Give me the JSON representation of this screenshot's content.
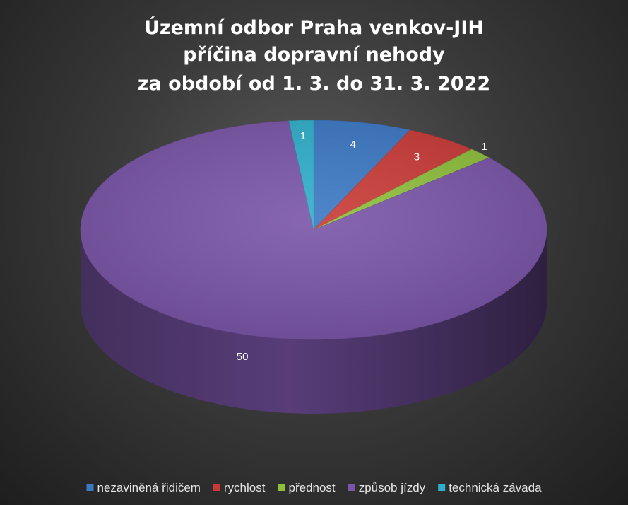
{
  "chart_data": {
    "type": "pie",
    "title_lines": [
      "Územní odbor Praha venkov-JIH",
      "příčina dopravní nehody",
      "za období od 1. 3. do 31. 3. 2022"
    ],
    "categories": [
      "nezaviněná řidičem",
      "rychlost",
      "přednost",
      "způsob jízdy",
      "technická závada"
    ],
    "values": [
      4,
      3,
      1,
      50,
      1
    ],
    "colors": [
      "#3b78c4",
      "#c93a36",
      "#8ebf3c",
      "#7a55a8",
      "#2fafc9"
    ],
    "legend_position": "bottom",
    "style": "3d-pie"
  }
}
